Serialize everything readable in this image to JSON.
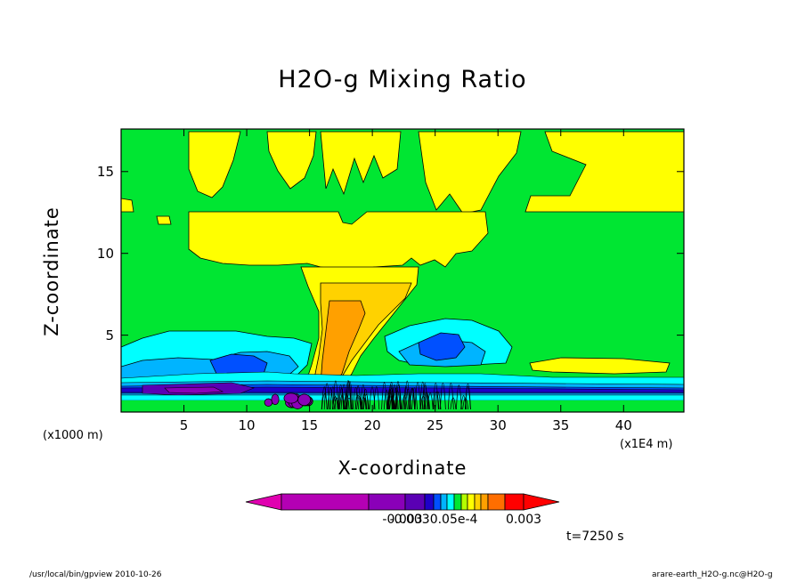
{
  "chart_data": {
    "type": "heatmap",
    "title": "H2O-g Mixing Ratio",
    "xlabel": "X-coordinate",
    "ylabel": "Z-coordinate",
    "x_unit_left": "(x1000 m)",
    "x_unit_right": "(x1E4 m)",
    "xlim": [
      0,
      44.8
    ],
    "ylim": [
      0.3,
      17.6
    ],
    "x_ticks": [
      5,
      10,
      15,
      20,
      25,
      30,
      35,
      40
    ],
    "y_ticks": [
      5,
      10,
      15
    ],
    "colorbar": {
      "colors": [
        "#e000b0",
        "#b400b4",
        "#8a00b8",
        "#5a00b4",
        "#1e00c8",
        "#0050ff",
        "#00b4ff",
        "#00ffff",
        "#00e632",
        "#b4ff00",
        "#ffff00",
        "#ffd200",
        "#ffa000",
        "#ff6e00",
        "#ff0000"
      ],
      "labels": [
        "-0.003",
        "-0.0030.05e-4",
        "0.003"
      ]
    },
    "time_label": "t=7250 s"
  },
  "footer": {
    "left": "/usr/local/bin/gpview  2010-10-26",
    "right": "arare-earth_H2O-g.nc@H2O-g"
  }
}
